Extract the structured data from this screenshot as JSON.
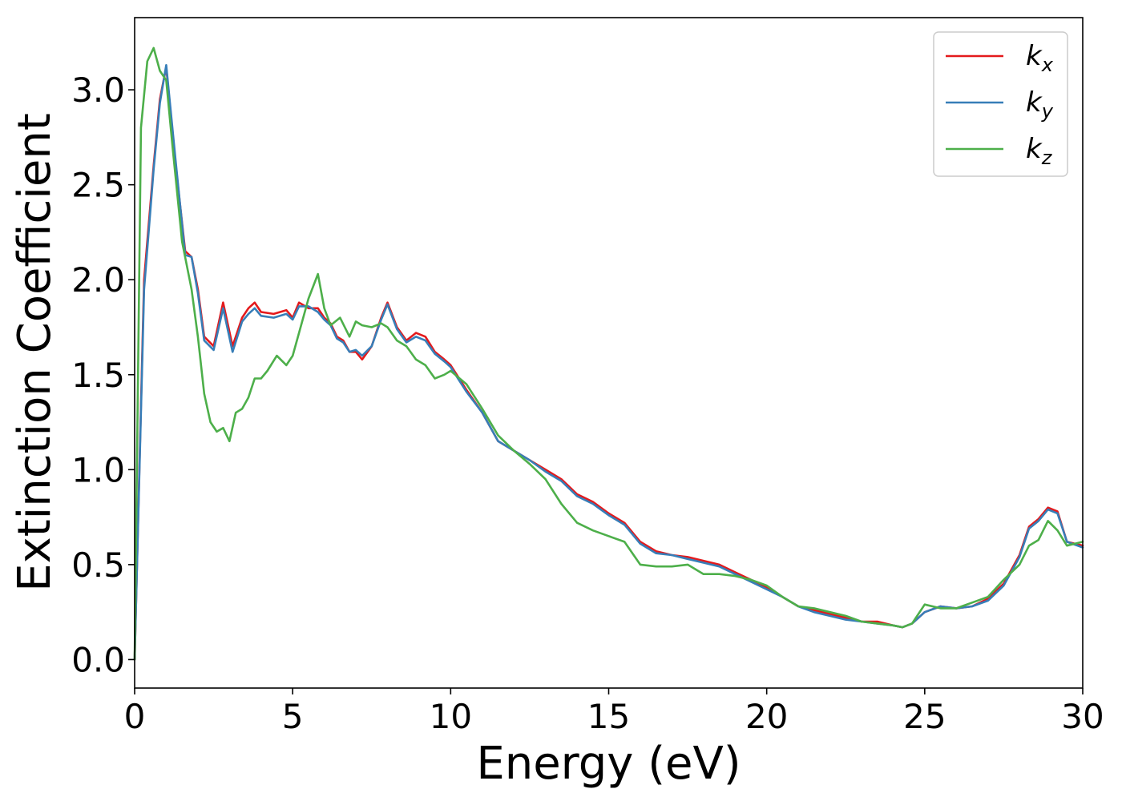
{
  "chart_data": {
    "type": "line",
    "xlabel": "Energy (eV)",
    "ylabel": "Extinction Coefficient",
    "xlim": [
      0,
      30
    ],
    "ylim": [
      -0.15,
      3.38
    ],
    "xticks": [
      0,
      5,
      10,
      15,
      20,
      25,
      30
    ],
    "xtick_labels": [
      "0",
      "5",
      "10",
      "15",
      "20",
      "25",
      "30"
    ],
    "yticks": [
      0.0,
      0.5,
      1.0,
      1.5,
      2.0,
      2.5,
      3.0
    ],
    "ytick_labels": [
      "0.0",
      "0.5",
      "1.0",
      "1.5",
      "2.0",
      "2.5",
      "3.0"
    ],
    "grid": false,
    "legend_position": "top-right",
    "series": [
      {
        "name": "k",
        "subscript": "x",
        "color": "#e41a1c",
        "x": [
          0,
          0.3,
          0.6,
          0.8,
          1.0,
          1.3,
          1.6,
          1.8,
          2.0,
          2.2,
          2.5,
          2.8,
          3.1,
          3.4,
          3.6,
          3.8,
          4.0,
          4.4,
          4.8,
          5.0,
          5.2,
          5.5,
          5.8,
          6.0,
          6.2,
          6.4,
          6.6,
          6.8,
          7.0,
          7.2,
          7.5,
          7.8,
          8.0,
          8.3,
          8.6,
          8.9,
          9.2,
          9.5,
          9.8,
          10.0,
          10.5,
          11.0,
          11.5,
          12.0,
          12.5,
          13.0,
          13.5,
          14.0,
          14.5,
          15.0,
          15.5,
          16.0,
          16.5,
          17.0,
          17.5,
          18.0,
          18.5,
          19.0,
          19.5,
          20.0,
          20.5,
          21.0,
          21.5,
          22.0,
          22.5,
          23.0,
          23.5,
          24.0,
          24.3,
          24.6,
          25.0,
          25.5,
          26.0,
          26.5,
          27.0,
          27.5,
          28.0,
          28.3,
          28.6,
          28.9,
          29.2,
          29.5,
          30.0
        ],
        "y": [
          0.0,
          2.0,
          2.6,
          2.95,
          3.12,
          2.6,
          2.15,
          2.12,
          1.95,
          1.7,
          1.65,
          1.88,
          1.65,
          1.8,
          1.85,
          1.88,
          1.83,
          1.82,
          1.84,
          1.8,
          1.88,
          1.85,
          1.85,
          1.8,
          1.77,
          1.7,
          1.68,
          1.62,
          1.62,
          1.58,
          1.65,
          1.8,
          1.88,
          1.75,
          1.68,
          1.72,
          1.7,
          1.62,
          1.58,
          1.55,
          1.42,
          1.3,
          1.15,
          1.1,
          1.05,
          1.0,
          0.95,
          0.87,
          0.83,
          0.77,
          0.72,
          0.62,
          0.57,
          0.55,
          0.54,
          0.52,
          0.5,
          0.46,
          0.42,
          0.38,
          0.33,
          0.28,
          0.26,
          0.24,
          0.22,
          0.2,
          0.2,
          0.18,
          0.17,
          0.19,
          0.25,
          0.28,
          0.27,
          0.28,
          0.32,
          0.4,
          0.55,
          0.7,
          0.74,
          0.8,
          0.78,
          0.62,
          0.6
        ]
      },
      {
        "name": "k",
        "subscript": "y",
        "color": "#377eb8",
        "x": [
          0,
          0.3,
          0.6,
          0.8,
          1.0,
          1.3,
          1.6,
          1.8,
          2.0,
          2.2,
          2.5,
          2.8,
          3.1,
          3.4,
          3.6,
          3.8,
          4.0,
          4.4,
          4.8,
          5.0,
          5.2,
          5.5,
          5.8,
          6.0,
          6.2,
          6.4,
          6.6,
          6.8,
          7.0,
          7.2,
          7.5,
          7.8,
          8.0,
          8.3,
          8.6,
          8.9,
          9.2,
          9.5,
          9.8,
          10.0,
          10.5,
          11.0,
          11.5,
          12.0,
          12.5,
          13.0,
          13.5,
          14.0,
          14.5,
          15.0,
          15.5,
          16.0,
          16.5,
          17.0,
          17.5,
          18.0,
          18.5,
          19.0,
          19.5,
          20.0,
          20.5,
          21.0,
          21.5,
          22.0,
          22.5,
          23.0,
          23.5,
          24.0,
          24.3,
          24.6,
          25.0,
          25.5,
          26.0,
          26.5,
          27.0,
          27.5,
          28.0,
          28.3,
          28.6,
          28.9,
          29.2,
          29.5,
          30.0
        ],
        "y": [
          0.0,
          1.95,
          2.58,
          2.93,
          3.13,
          2.62,
          2.13,
          2.12,
          1.93,
          1.68,
          1.63,
          1.85,
          1.62,
          1.78,
          1.82,
          1.85,
          1.81,
          1.8,
          1.82,
          1.79,
          1.86,
          1.86,
          1.83,
          1.79,
          1.76,
          1.69,
          1.67,
          1.62,
          1.63,
          1.6,
          1.65,
          1.79,
          1.87,
          1.74,
          1.67,
          1.7,
          1.68,
          1.61,
          1.57,
          1.54,
          1.41,
          1.3,
          1.15,
          1.1,
          1.05,
          0.99,
          0.94,
          0.86,
          0.82,
          0.76,
          0.71,
          0.61,
          0.56,
          0.55,
          0.53,
          0.51,
          0.49,
          0.45,
          0.41,
          0.37,
          0.33,
          0.28,
          0.25,
          0.23,
          0.21,
          0.2,
          0.19,
          0.18,
          0.17,
          0.19,
          0.25,
          0.28,
          0.27,
          0.28,
          0.31,
          0.39,
          0.54,
          0.69,
          0.73,
          0.79,
          0.77,
          0.62,
          0.59
        ]
      },
      {
        "name": "k",
        "subscript": "z",
        "color": "#4daf4a",
        "x": [
          0,
          0.2,
          0.4,
          0.6,
          0.8,
          1.0,
          1.2,
          1.5,
          1.8,
          2.0,
          2.2,
          2.4,
          2.6,
          2.8,
          3.0,
          3.2,
          3.4,
          3.6,
          3.8,
          4.0,
          4.2,
          4.5,
          4.8,
          5.0,
          5.2,
          5.5,
          5.8,
          6.0,
          6.2,
          6.5,
          6.8,
          7.0,
          7.2,
          7.5,
          7.8,
          8.0,
          8.3,
          8.6,
          8.9,
          9.2,
          9.5,
          9.8,
          10.0,
          10.5,
          11.0,
          11.5,
          12.0,
          12.5,
          13.0,
          13.5,
          14.0,
          14.5,
          15.0,
          15.5,
          16.0,
          16.5,
          17.0,
          17.5,
          18.0,
          18.5,
          19.0,
          19.5,
          20.0,
          20.5,
          21.0,
          21.5,
          22.0,
          22.5,
          23.0,
          23.5,
          24.0,
          24.3,
          24.6,
          25.0,
          25.5,
          26.0,
          26.5,
          27.0,
          27.5,
          28.0,
          28.3,
          28.6,
          28.9,
          29.2,
          29.5,
          30.0
        ],
        "y": [
          0.0,
          2.8,
          3.15,
          3.22,
          3.1,
          3.05,
          2.7,
          2.2,
          1.95,
          1.7,
          1.4,
          1.25,
          1.2,
          1.22,
          1.15,
          1.3,
          1.32,
          1.38,
          1.48,
          1.48,
          1.52,
          1.6,
          1.55,
          1.6,
          1.72,
          1.9,
          2.03,
          1.85,
          1.76,
          1.8,
          1.7,
          1.78,
          1.76,
          1.75,
          1.77,
          1.75,
          1.68,
          1.65,
          1.58,
          1.55,
          1.48,
          1.5,
          1.52,
          1.45,
          1.32,
          1.18,
          1.1,
          1.03,
          0.95,
          0.82,
          0.72,
          0.68,
          0.65,
          0.62,
          0.5,
          0.49,
          0.49,
          0.5,
          0.45,
          0.45,
          0.44,
          0.42,
          0.39,
          0.33,
          0.28,
          0.27,
          0.25,
          0.23,
          0.2,
          0.19,
          0.18,
          0.17,
          0.19,
          0.29,
          0.27,
          0.27,
          0.3,
          0.33,
          0.42,
          0.5,
          0.6,
          0.63,
          0.73,
          0.68,
          0.6,
          0.62
        ]
      }
    ]
  }
}
